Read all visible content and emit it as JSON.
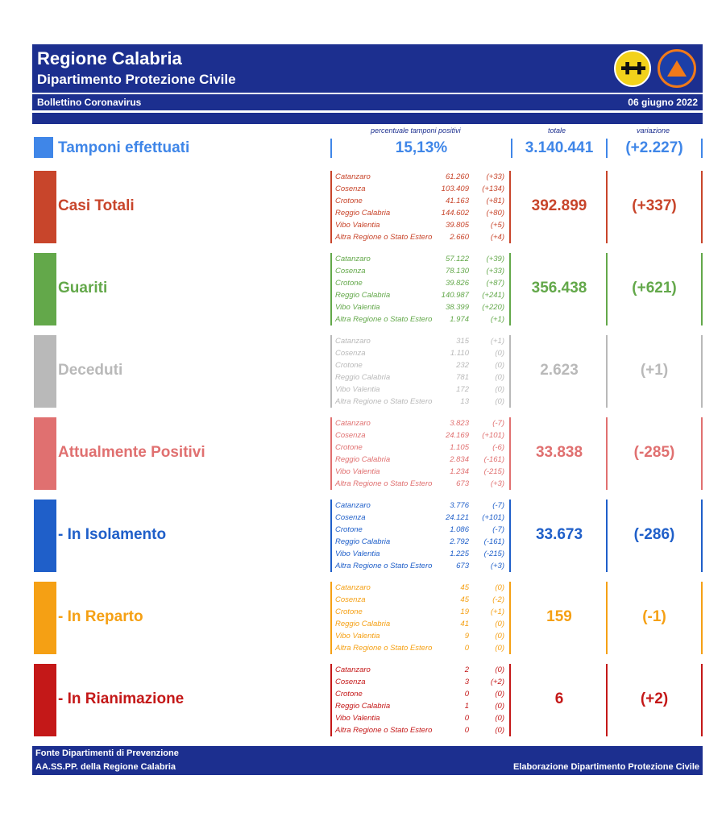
{
  "header": {
    "title": "Regione Calabria",
    "subtitle": "Dipartimento Protezione Civile",
    "bulletin": "Bollettino Coronavirus",
    "date": "06 giugno 2022"
  },
  "columns": {
    "pct_label": "percentuale tamponi positivi",
    "total_label": "totale",
    "var_label": "variazione"
  },
  "tamponi": {
    "label": "Tamponi effettuati",
    "pct": "15,13%",
    "total": "3.140.441",
    "var": "(+2.227)",
    "color": "#3f86e8"
  },
  "sections": [
    {
      "label": "Casi Totali",
      "color": "#c8452b",
      "total": "392.899",
      "var": "(+337)",
      "rows": [
        {
          "name": "Catanzaro",
          "value": "61.260",
          "delta": "(+33)"
        },
        {
          "name": "Cosenza",
          "value": "103.409",
          "delta": "(+134)"
        },
        {
          "name": "Crotone",
          "value": "41.163",
          "delta": "(+81)"
        },
        {
          "name": "Reggio Calabria",
          "value": "144.602",
          "delta": "(+80)"
        },
        {
          "name": "Vibo Valentia",
          "value": "39.805",
          "delta": "(+5)"
        },
        {
          "name": "Altra Regione o Stato Estero",
          "value": "2.660",
          "delta": "(+4)"
        }
      ]
    },
    {
      "label": "Guariti",
      "color": "#63a84a",
      "total": "356.438",
      "var": "(+621)",
      "rows": [
        {
          "name": "Catanzaro",
          "value": "57.122",
          "delta": "(+39)"
        },
        {
          "name": "Cosenza",
          "value": "78.130",
          "delta": "(+33)"
        },
        {
          "name": "Crotone",
          "value": "39.826",
          "delta": "(+87)"
        },
        {
          "name": "Reggio Calabria",
          "value": "140.987",
          "delta": "(+241)"
        },
        {
          "name": "Vibo Valentia",
          "value": "38.399",
          "delta": "(+220)"
        },
        {
          "name": "Altra Regione o Stato Estero",
          "value": "1.974",
          "delta": "(+1)"
        }
      ]
    },
    {
      "label": "Deceduti",
      "color": "#b9b9b9",
      "total": "2.623",
      "var": "(+1)",
      "rows": [
        {
          "name": "Catanzaro",
          "value": "315",
          "delta": "(+1)"
        },
        {
          "name": "Cosenza",
          "value": "1.110",
          "delta": "(0)"
        },
        {
          "name": "Crotone",
          "value": "232",
          "delta": "(0)"
        },
        {
          "name": "Reggio Calabria",
          "value": "781",
          "delta": "(0)"
        },
        {
          "name": "Vibo Valentia",
          "value": "172",
          "delta": "(0)"
        },
        {
          "name": "Altra Regione o Stato Estero",
          "value": "13",
          "delta": "(0)"
        }
      ]
    },
    {
      "label": "Attualmente Positivi",
      "color": "#e07070",
      "total": "33.838",
      "var": "(-285)",
      "rows": [
        {
          "name": "Catanzaro",
          "value": "3.823",
          "delta": "(-7)"
        },
        {
          "name": "Cosenza",
          "value": "24.169",
          "delta": "(+101)"
        },
        {
          "name": "Crotone",
          "value": "1.105",
          "delta": "(-6)"
        },
        {
          "name": "Reggio Calabria",
          "value": "2.834",
          "delta": "(-161)"
        },
        {
          "name": "Vibo Valentia",
          "value": "1.234",
          "delta": "(-215)"
        },
        {
          "name": "Altra Regione o Stato Estero",
          "value": "673",
          "delta": "(+3)"
        }
      ]
    },
    {
      "label": "- In Isolamento",
      "color": "#1f5fc9",
      "total": "33.673",
      "var": "(-286)",
      "rows": [
        {
          "name": "Catanzaro",
          "value": "3.776",
          "delta": "(-7)"
        },
        {
          "name": "Cosenza",
          "value": "24.121",
          "delta": "(+101)"
        },
        {
          "name": "Crotone",
          "value": "1.086",
          "delta": "(-7)"
        },
        {
          "name": "Reggio Calabria",
          "value": "2.792",
          "delta": "(-161)"
        },
        {
          "name": "Vibo Valentia",
          "value": "1.225",
          "delta": "(-215)"
        },
        {
          "name": "Altra Regione o Stato Estero",
          "value": "673",
          "delta": "(+3)"
        }
      ]
    },
    {
      "label": "- In Reparto",
      "color": "#f5a014",
      "total": "159",
      "var": "(-1)",
      "rows": [
        {
          "name": "Catanzaro",
          "value": "45",
          "delta": "(0)"
        },
        {
          "name": "Cosenza",
          "value": "45",
          "delta": "(-2)"
        },
        {
          "name": "Crotone",
          "value": "19",
          "delta": "(+1)"
        },
        {
          "name": "Reggio Calabria",
          "value": "41",
          "delta": "(0)"
        },
        {
          "name": "Vibo Valentia",
          "value": "9",
          "delta": "(0)"
        },
        {
          "name": "Altra Regione o Stato Estero",
          "value": "0",
          "delta": "(0)"
        }
      ]
    },
    {
      "label": "- In Rianimazione",
      "color": "#c41818",
      "total": "6",
      "var": "(+2)",
      "rows": [
        {
          "name": "Catanzaro",
          "value": "2",
          "delta": "(0)"
        },
        {
          "name": "Cosenza",
          "value": "3",
          "delta": "(+2)"
        },
        {
          "name": "Crotone",
          "value": "0",
          "delta": "(0)"
        },
        {
          "name": "Reggio Calabria",
          "value": "1",
          "delta": "(0)"
        },
        {
          "name": "Vibo Valentia",
          "value": "0",
          "delta": "(0)"
        },
        {
          "name": "Altra Regione o Stato Estero",
          "value": "0",
          "delta": "(0)"
        }
      ]
    }
  ],
  "footer": {
    "source_line1": "Fonte Dipartimenti di Prevenzione",
    "source_line2": "AA.SS.PP.  della Regione Calabria",
    "credit": "Elaborazione Dipartimento Protezione Civile"
  },
  "logos": {
    "region_logo_icon": "calabria-crest-icon",
    "civil_protection_logo_icon": "protezione-civile-icon"
  }
}
